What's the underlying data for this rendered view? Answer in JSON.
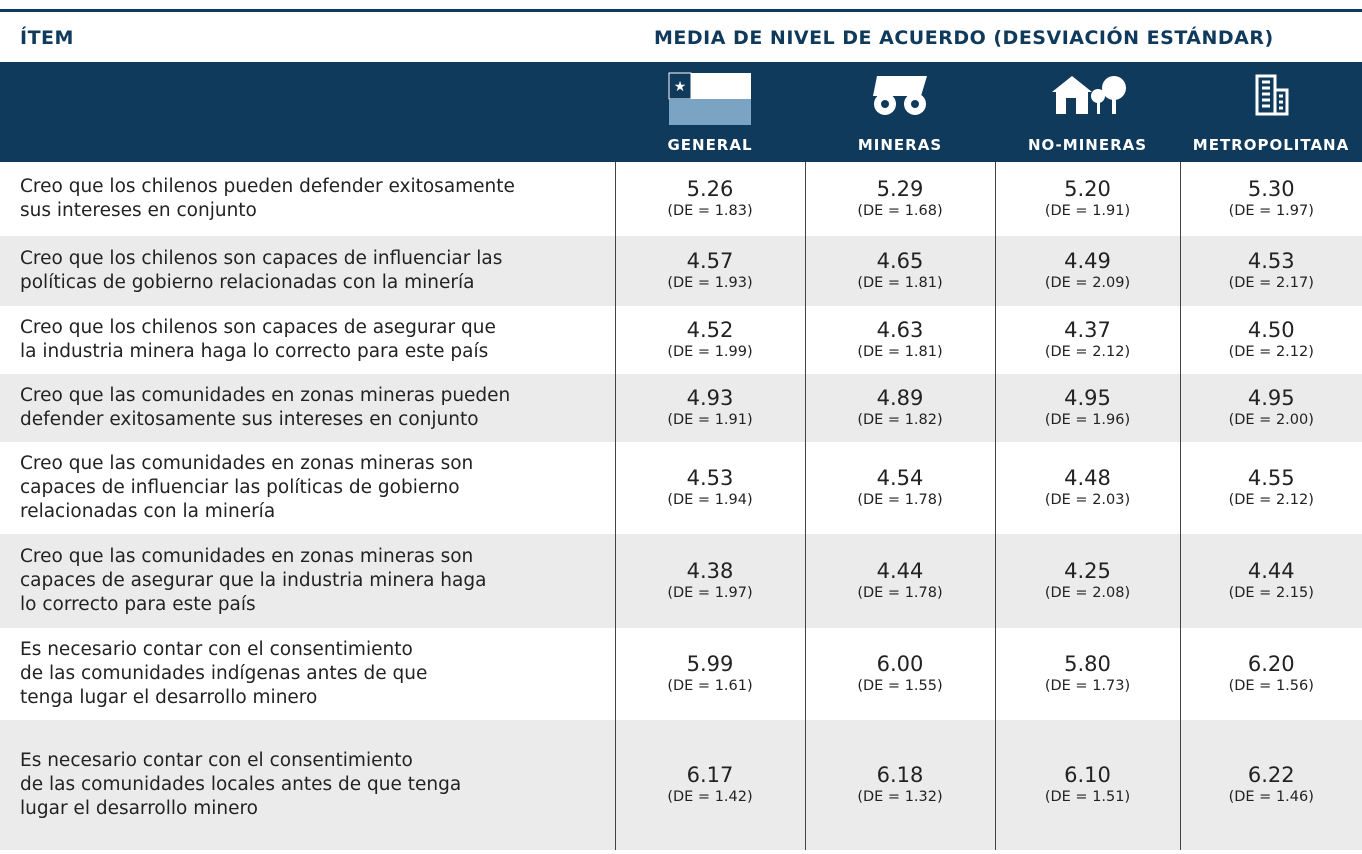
{
  "header": {
    "item": "ÍTEM",
    "measure": "MEDIA DE NIVEL DE ACUERDO (DESVIACIÓN ESTÁNDAR)"
  },
  "columns": [
    "GENERAL",
    "MINERAS",
    "NO-MINERAS",
    "METROPOLITANA"
  ],
  "rows": [
    {
      "item": [
        "Creo que los chilenos pueden defender exitosamente",
        "sus intereses en conjunto"
      ],
      "cells": [
        [
          "5.26",
          "(DE = 1.83)"
        ],
        [
          "5.29",
          "(DE = 1.68)"
        ],
        [
          "5.20",
          "(DE = 1.91)"
        ],
        [
          "5.30",
          "(DE = 1.97)"
        ]
      ]
    },
    {
      "item": [
        "Creo que los chilenos son capaces de influenciar las",
        "políticas de gobierno relacionadas con la minería"
      ],
      "cells": [
        [
          "4.57",
          "(DE = 1.93)"
        ],
        [
          "4.65",
          "(DE = 1.81)"
        ],
        [
          "4.49",
          "(DE = 2.09)"
        ],
        [
          "4.53",
          "(DE = 2.17)"
        ]
      ]
    },
    {
      "item": [
        "Creo que los chilenos son capaces de asegurar que",
        "la industria minera haga lo correcto para este país"
      ],
      "cells": [
        [
          "4.52",
          "(DE = 1.99)"
        ],
        [
          "4.63",
          "(DE = 1.81)"
        ],
        [
          "4.37",
          "(DE = 2.12)"
        ],
        [
          "4.50",
          "(DE = 2.12)"
        ]
      ]
    },
    {
      "item": [
        "Creo que las comunidades en zonas mineras pueden",
        "defender exitosamente sus intereses en conjunto"
      ],
      "cells": [
        [
          "4.93",
          "(DE = 1.91)"
        ],
        [
          "4.89",
          "(DE = 1.82)"
        ],
        [
          "4.95",
          "(DE = 1.96)"
        ],
        [
          "4.95",
          "(DE = 2.00)"
        ]
      ]
    },
    {
      "item": [
        "Creo que las comunidades en zonas mineras son",
        "capaces de influenciar las políticas de gobierno",
        "relacionadas con la minería"
      ],
      "cells": [
        [
          "4.53",
          "(DE = 1.94)"
        ],
        [
          "4.54",
          "(DE = 1.78)"
        ],
        [
          "4.48",
          "(DE = 2.03)"
        ],
        [
          "4.55",
          "(DE = 2.12)"
        ]
      ]
    },
    {
      "item": [
        "Creo que las comunidades en zonas mineras son",
        "capaces de asegurar que la industria minera haga",
        "lo correcto para este país"
      ],
      "cells": [
        [
          "4.38",
          "(DE = 1.97)"
        ],
        [
          "4.44",
          "(DE = 1.78)"
        ],
        [
          "4.25",
          "(DE = 2.08)"
        ],
        [
          "4.44",
          "(DE = 2.15)"
        ]
      ]
    },
    {
      "item": [
        "Es necesario contar con el consentimiento",
        "de las comunidades indígenas antes de que",
        "tenga lugar el desarrollo minero"
      ],
      "cells": [
        [
          "5.99",
          "(DE = 1.61)"
        ],
        [
          "6.00",
          "(DE = 1.55)"
        ],
        [
          "5.80",
          "(DE = 1.73)"
        ],
        [
          "6.20",
          "(DE = 1.56)"
        ]
      ]
    },
    {
      "item": [
        "Es necesario contar con el consentimiento",
        "de las comunidades locales antes de que tenga",
        "lugar el desarrollo minero"
      ],
      "cells": [
        [
          "6.17",
          "(DE = 1.42)"
        ],
        [
          "6.18",
          "(DE = 1.32)"
        ],
        [
          "6.10",
          "(DE = 1.51)"
        ],
        [
          "6.22",
          "(DE = 1.46)"
        ]
      ]
    }
  ]
}
